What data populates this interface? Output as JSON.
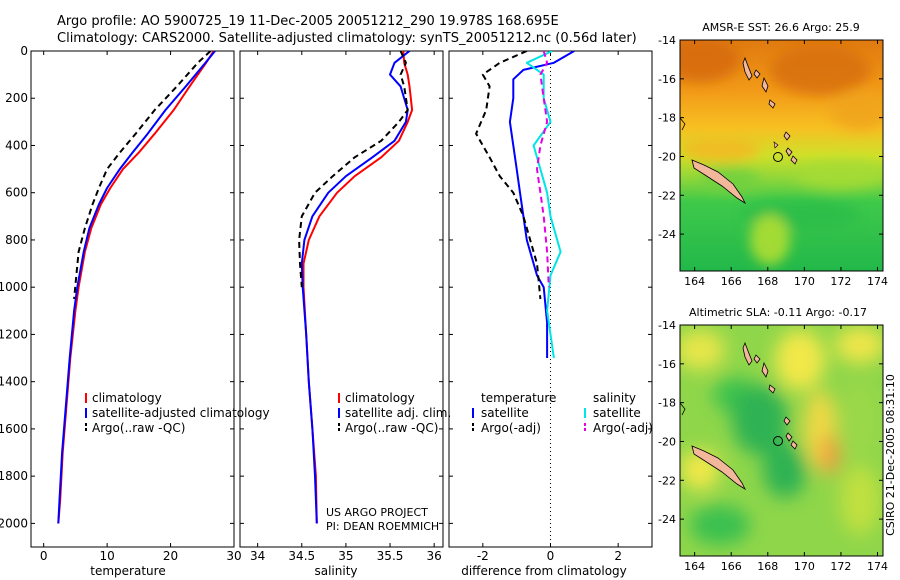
{
  "header": {
    "line1": "Argo profile: AO 5900725_19 11-Dec-2005 20051212_290 19.978S 168.695E",
    "line2": "Climatology: CARS2000. Satellite-adjusted climatology: synTS_20051212.nc (0.56d later)"
  },
  "footer": {
    "project": "US ARGO PROJECT",
    "pi": "PI: DEAN ROEMMICH",
    "stamp": "CSIRO 21-Dec-2005 08:31:10"
  },
  "colors": {
    "climatology": "#ff0000",
    "satellite": "#0000ff",
    "argo": "#000000",
    "sal_satellite": "#00e5e5",
    "sal_argo": "#e600e6"
  },
  "chart_data": [
    {
      "type": "line",
      "id": "temperature",
      "xlabel": "temperature",
      "ylabel": "",
      "xlim": [
        -2,
        30
      ],
      "ylim": [
        2100,
        0
      ],
      "xticks": [
        "0",
        "10",
        "20",
        "30"
      ],
      "xtick_values": [
        0,
        10,
        20,
        30
      ],
      "yticks": [
        "0",
        "200",
        "400",
        "600",
        "800",
        "1000",
        "1200",
        "1400",
        "1600",
        "1800",
        "2000"
      ],
      "ytick_values": [
        0,
        200,
        400,
        600,
        800,
        1000,
        1200,
        1400,
        1600,
        1800,
        2000
      ],
      "legend": [
        "climatology",
        "satellite-adjusted climatology",
        "Argo(..raw -QC)"
      ],
      "series": [
        {
          "name": "climatology",
          "color": "#ff0000",
          "dash": "solid",
          "x": [
            26.8,
            25.6,
            23.0,
            20.5,
            17.5,
            15.0,
            12.5,
            10.5,
            9.0,
            7.5,
            6.5,
            5.5,
            5.0,
            4.2,
            3.6,
            3.0,
            2.6,
            2.3
          ],
          "y": [
            0,
            50,
            150,
            250,
            350,
            430,
            500,
            580,
            650,
            750,
            850,
            1000,
            1100,
            1300,
            1500,
            1700,
            1900,
            2000
          ]
        },
        {
          "name": "satellite-adjusted climatology",
          "color": "#0000ff",
          "dash": "solid",
          "x": [
            27.0,
            25.5,
            22.4,
            19.2,
            16.4,
            14.0,
            12.0,
            10.0,
            8.7,
            7.2,
            6.3,
            5.3,
            4.8,
            4.1,
            3.5,
            2.9,
            2.5,
            2.3
          ],
          "y": [
            0,
            50,
            150,
            250,
            350,
            430,
            500,
            580,
            650,
            750,
            850,
            1000,
            1100,
            1300,
            1500,
            1700,
            1900,
            2000
          ]
        },
        {
          "name": "Argo(..raw -QC)",
          "color": "#000000",
          "dash": "dashed",
          "x": [
            26.3,
            24.3,
            21.0,
            17.5,
            14.5,
            12.0,
            10.0,
            8.7,
            7.7,
            6.5,
            5.5,
            4.8
          ],
          "y": [
            0,
            50,
            150,
            250,
            350,
            430,
            500,
            580,
            650,
            750,
            850,
            1050
          ]
        }
      ]
    },
    {
      "type": "line",
      "id": "salinity",
      "xlabel": "salinity",
      "ylabel": "",
      "xlim": [
        33.8,
        36.1
      ],
      "ylim": [
        2100,
        0
      ],
      "xticks": [
        "34",
        "34.5",
        "35",
        "35.5",
        "36"
      ],
      "xtick_values": [
        34,
        34.5,
        35,
        35.5,
        36
      ],
      "legend": [
        "climatology",
        "satellite adj. clim.",
        "Argo(..raw -QC)"
      ],
      "series": [
        {
          "name": "climatology",
          "color": "#ff0000",
          "dash": "solid",
          "x": [
            35.65,
            35.66,
            35.7,
            35.72,
            35.75,
            35.7,
            35.6,
            35.4,
            35.1,
            34.9,
            34.7,
            34.58,
            34.52,
            34.52,
            34.55,
            34.58,
            34.62,
            34.66,
            34.67
          ],
          "y": [
            0,
            50,
            100,
            150,
            250,
            300,
            380,
            450,
            530,
            600,
            700,
            800,
            900,
            1000,
            1200,
            1400,
            1600,
            1800,
            2000
          ]
        },
        {
          "name": "satellite adj. clim.",
          "color": "#0000ff",
          "dash": "solid",
          "x": [
            35.72,
            35.55,
            35.5,
            35.62,
            35.7,
            35.68,
            35.55,
            35.3,
            35.0,
            34.8,
            34.62,
            34.53,
            34.5,
            34.51,
            34.55,
            34.58,
            34.62,
            34.65,
            34.67
          ],
          "y": [
            0,
            50,
            100,
            150,
            250,
            300,
            380,
            450,
            530,
            600,
            700,
            800,
            900,
            1000,
            1200,
            1400,
            1600,
            1800,
            2000
          ]
        },
        {
          "name": "Argo(..raw -QC)",
          "color": "#000000",
          "dash": "dashed",
          "x": [
            35.62,
            35.68,
            35.62,
            35.66,
            35.7,
            35.6,
            35.4,
            35.1,
            34.85,
            34.65,
            34.5,
            34.47,
            34.48,
            34.5
          ],
          "y": [
            0,
            50,
            100,
            150,
            250,
            300,
            380,
            450,
            530,
            600,
            700,
            800,
            900,
            1000
          ]
        }
      ]
    },
    {
      "type": "line",
      "id": "difference",
      "xlabel": "difference from climatology",
      "ylabel": "",
      "xlim": [
        -3,
        3
      ],
      "ylim": [
        2100,
        0
      ],
      "xticks": [
        "-2",
        "0",
        "2"
      ],
      "xtick_values": [
        -2,
        0,
        2
      ],
      "zero_line": 0,
      "legend_groups": [
        {
          "heading": "temperature",
          "items": [
            "satellite",
            "Argo(-adj)"
          ]
        },
        {
          "heading": "salinity",
          "items": [
            "satellite",
            "Argo(-adj)"
          ]
        }
      ],
      "series": [
        {
          "name": "satellite",
          "group": "temperature",
          "color": "#0000ff",
          "dash": "solid",
          "x": [
            0.7,
            0.1,
            -0.8,
            -1.1,
            -1.1,
            -1.2,
            -1.1,
            -1.0,
            -0.9,
            -0.8,
            -0.7,
            -0.5,
            -0.4,
            -0.2,
            -0.1,
            -0.1
          ],
          "y": [
            0,
            50,
            80,
            120,
            200,
            300,
            400,
            500,
            600,
            700,
            800,
            900,
            950,
            1000,
            1150,
            1300
          ]
        },
        {
          "name": "Argo(-adj)",
          "group": "temperature",
          "color": "#000000",
          "dash": "dashed",
          "x": [
            -0.7,
            -1.5,
            -2.0,
            -1.8,
            -1.9,
            -2.2,
            -1.8,
            -1.5,
            -1.1,
            -0.8,
            -0.6,
            -0.4,
            -0.3
          ],
          "y": [
            0,
            50,
            100,
            150,
            250,
            350,
            450,
            530,
            600,
            700,
            800,
            900,
            1050
          ]
        },
        {
          "name": "satellite",
          "group": "salinity",
          "color": "#00e5e5",
          "dash": "solid",
          "x": [
            0.05,
            -0.7,
            -0.2,
            -0.2,
            0.0,
            -0.5,
            -0.3,
            -0.1,
            0.0,
            0.3,
            0.0,
            -0.1,
            0.0,
            0.1
          ],
          "y": [
            0,
            50,
            100,
            200,
            300,
            400,
            500,
            600,
            700,
            850,
            950,
            1100,
            1200,
            1300
          ]
        },
        {
          "name": "Argo(-adj)",
          "group": "salinity",
          "color": "#e600e6",
          "dash": "dashed",
          "x": [
            -0.2,
            -0.1,
            -0.3,
            -0.2,
            -0.1,
            -0.3,
            -0.4,
            -0.3,
            -0.2,
            -0.1,
            -0.05
          ],
          "y": [
            0,
            50,
            100,
            200,
            300,
            400,
            500,
            600,
            700,
            850,
            1000
          ]
        }
      ]
    },
    {
      "type": "heatmap",
      "id": "sst_map",
      "title": "AMSR-E SST: 26.6 Argo: 25.9",
      "xticks": [
        "164",
        "166",
        "168",
        "170",
        "172",
        "174"
      ],
      "xtick_values": [
        164,
        166,
        168,
        170,
        172,
        174
      ],
      "yticks": [
        "-14",
        "-16",
        "-18",
        "-20",
        "-22",
        "-24"
      ],
      "ytick_values": [
        -14,
        -16,
        -18,
        -20,
        -22,
        -24
      ],
      "xlim": [
        163.2,
        174.3
      ],
      "ylim": [
        -25.9,
        -14
      ],
      "sst": 26.6,
      "argo_value": 25.9,
      "profile_location": {
        "lon": 168.695,
        "lat": -19.978
      }
    },
    {
      "type": "heatmap",
      "id": "sla_map",
      "title": "Altimetric SLA: -0.11 Argo: -0.17",
      "xticks": [
        "164",
        "166",
        "168",
        "170",
        "172",
        "174"
      ],
      "xtick_values": [
        164,
        166,
        168,
        170,
        172,
        174
      ],
      "yticks": [
        "-14",
        "-16",
        "-18",
        "-20",
        "-22",
        "-24"
      ],
      "ytick_values": [
        -14,
        -16,
        -18,
        -20,
        -22,
        -24
      ],
      "xlim": [
        163.2,
        174.3
      ],
      "ylim": [
        -25.9,
        -14
      ],
      "sla": -0.11,
      "argo_value": -0.17,
      "profile_location": {
        "lon": 168.695,
        "lat": -19.978
      }
    }
  ]
}
